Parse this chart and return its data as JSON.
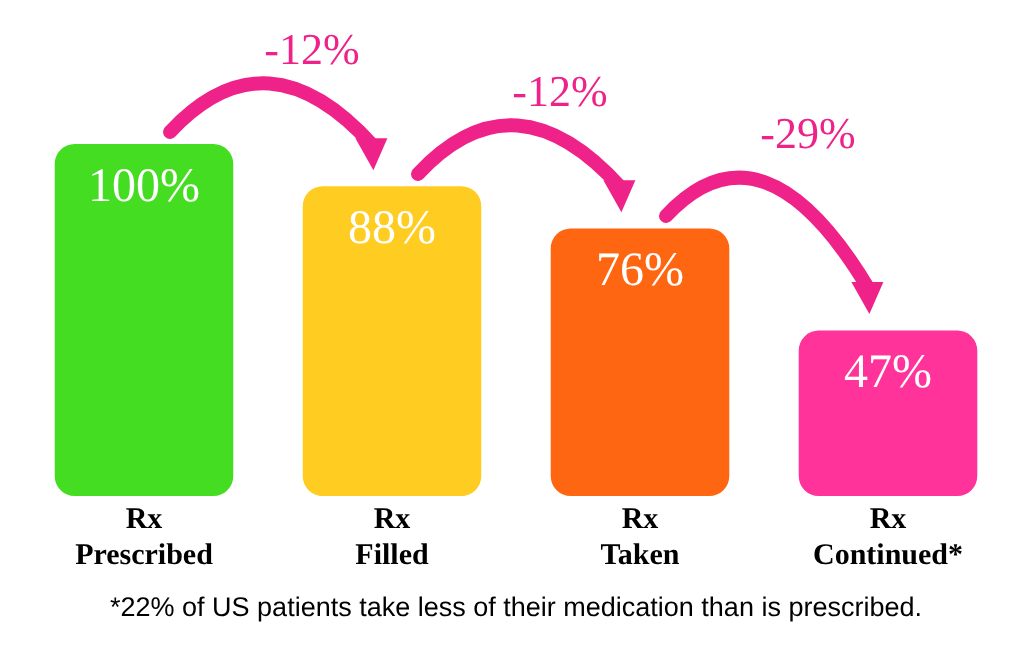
{
  "chart_data": {
    "type": "bar",
    "categories": [
      "Rx Prescribed",
      "Rx Filled",
      "Rx Taken",
      "Rx Continued*"
    ],
    "values": [
      100,
      88,
      76,
      47
    ],
    "colors": [
      "#44dd22",
      "#ffcc22",
      "#ff6611",
      "#ff3399"
    ],
    "value_labels": [
      "100%",
      "88%",
      "76%",
      "47%"
    ],
    "annotations": [
      "-12%",
      "-12%",
      "-29%",
      "*22% of US patients take less of their medication than is prescribed."
    ],
    "grid": false,
    "legend": false
  }
}
